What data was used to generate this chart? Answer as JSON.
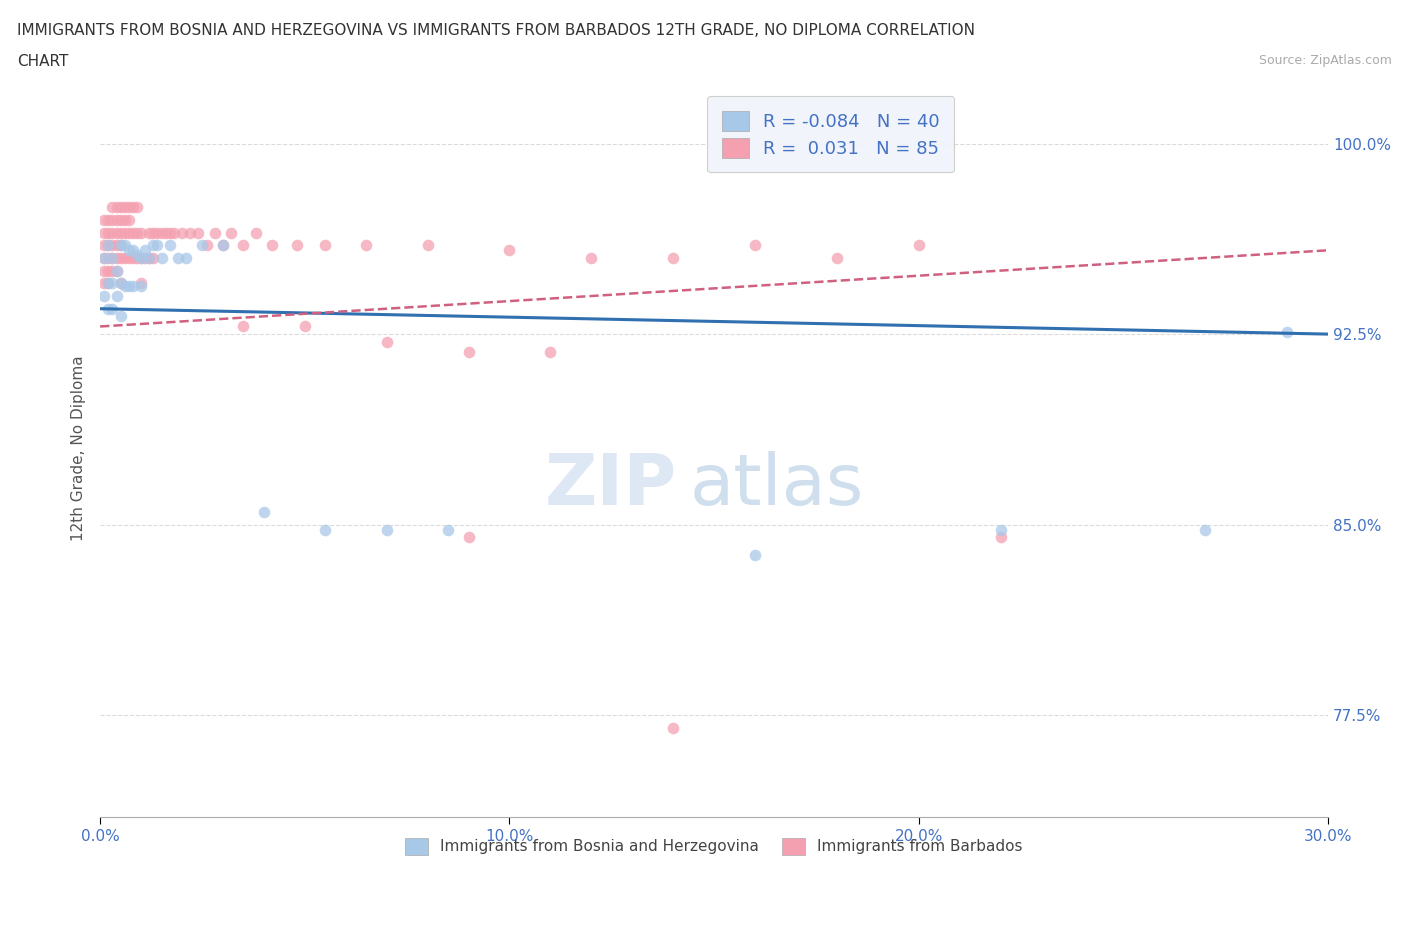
{
  "title_line1": "IMMIGRANTS FROM BOSNIA AND HERZEGOVINA VS IMMIGRANTS FROM BARBADOS 12TH GRADE, NO DIPLOMA CORRELATION",
  "title_line2": "CHART",
  "source_text": "Source: ZipAtlas.com",
  "ylabel": "12th Grade, No Diploma",
  "xlim": [
    0.0,
    0.3
  ],
  "ylim": [
    0.735,
    1.025
  ],
  "yticks": [
    0.775,
    0.85,
    0.925,
    1.0
  ],
  "ytick_labels": [
    "77.5%",
    "85.0%",
    "92.5%",
    "100.0%"
  ],
  "xticks": [
    0.0,
    0.1,
    0.2,
    0.3
  ],
  "xtick_labels": [
    "0.0%",
    "10.0%",
    "20.0%",
    "30.0%"
  ],
  "legend_label1": "Immigrants from Bosnia and Herzegovina",
  "legend_label2": "Immigrants from Barbados",
  "R1": -0.084,
  "N1": 40,
  "R2": 0.031,
  "N2": 85,
  "color_blue": "#a8c8e8",
  "color_pink": "#f4a0b0",
  "color_blue_line": "#3070b0",
  "color_pink_line": "#d06080",
  "watermark_text": "ZIP",
  "watermark_text2": "atlas",
  "bosnia_x": [
    0.001,
    0.001,
    0.002,
    0.002,
    0.002,
    0.003,
    0.003,
    0.003,
    0.004,
    0.004,
    0.005,
    0.005,
    0.005,
    0.006,
    0.006,
    0.007,
    0.007,
    0.008,
    0.008,
    0.009,
    0.01,
    0.01,
    0.011,
    0.012,
    0.013,
    0.014,
    0.015,
    0.017,
    0.019,
    0.021,
    0.025,
    0.03,
    0.04,
    0.055,
    0.07,
    0.085,
    0.16,
    0.22,
    0.27,
    0.29
  ],
  "bosnia_y": [
    0.955,
    0.94,
    0.96,
    0.945,
    0.935,
    0.955,
    0.945,
    0.935,
    0.95,
    0.94,
    0.96,
    0.945,
    0.932,
    0.96,
    0.944,
    0.958,
    0.944,
    0.958,
    0.944,
    0.956,
    0.955,
    0.944,
    0.958,
    0.955,
    0.96,
    0.96,
    0.955,
    0.96,
    0.955,
    0.955,
    0.96,
    0.96,
    0.855,
    0.848,
    0.848,
    0.848,
    0.838,
    0.848,
    0.848,
    0.926
  ],
  "barbados_x": [
    0.001,
    0.001,
    0.001,
    0.001,
    0.001,
    0.001,
    0.002,
    0.002,
    0.002,
    0.002,
    0.002,
    0.002,
    0.003,
    0.003,
    0.003,
    0.003,
    0.003,
    0.003,
    0.004,
    0.004,
    0.004,
    0.004,
    0.004,
    0.004,
    0.005,
    0.005,
    0.005,
    0.005,
    0.005,
    0.005,
    0.006,
    0.006,
    0.006,
    0.006,
    0.007,
    0.007,
    0.007,
    0.007,
    0.008,
    0.008,
    0.008,
    0.009,
    0.009,
    0.009,
    0.01,
    0.01,
    0.01,
    0.011,
    0.012,
    0.012,
    0.013,
    0.013,
    0.014,
    0.015,
    0.016,
    0.017,
    0.018,
    0.02,
    0.022,
    0.024,
    0.026,
    0.028,
    0.03,
    0.032,
    0.035,
    0.038,
    0.042,
    0.048,
    0.055,
    0.065,
    0.08,
    0.1,
    0.12,
    0.14,
    0.16,
    0.18,
    0.2,
    0.035,
    0.05,
    0.07,
    0.09,
    0.11,
    0.09,
    0.14,
    0.22
  ],
  "barbados_y": [
    0.97,
    0.965,
    0.96,
    0.955,
    0.95,
    0.945,
    0.97,
    0.965,
    0.96,
    0.955,
    0.95,
    0.945,
    0.975,
    0.97,
    0.965,
    0.96,
    0.955,
    0.95,
    0.975,
    0.97,
    0.965,
    0.96,
    0.955,
    0.95,
    0.975,
    0.97,
    0.965,
    0.96,
    0.955,
    0.945,
    0.975,
    0.97,
    0.965,
    0.955,
    0.975,
    0.97,
    0.965,
    0.955,
    0.975,
    0.965,
    0.955,
    0.975,
    0.965,
    0.955,
    0.965,
    0.955,
    0.945,
    0.955,
    0.965,
    0.955,
    0.965,
    0.955,
    0.965,
    0.965,
    0.965,
    0.965,
    0.965,
    0.965,
    0.965,
    0.965,
    0.96,
    0.965,
    0.96,
    0.965,
    0.96,
    0.965,
    0.96,
    0.96,
    0.96,
    0.96,
    0.96,
    0.958,
    0.955,
    0.955,
    0.96,
    0.955,
    0.96,
    0.928,
    0.928,
    0.922,
    0.918,
    0.918,
    0.845,
    0.77,
    0.845
  ]
}
